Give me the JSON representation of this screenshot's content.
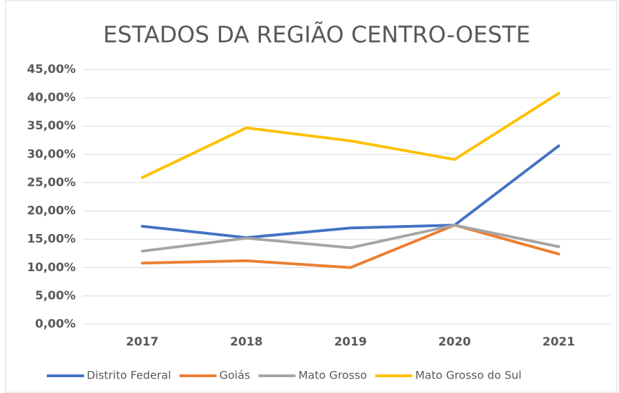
{
  "chart_data": {
    "type": "line",
    "title": "ESTADOS DA REGIÃO CENTRO-OESTE",
    "categories": [
      "2017",
      "2018",
      "2019",
      "2020",
      "2021"
    ],
    "series": [
      {
        "name": "Distrito Federal",
        "color": "#4472c4",
        "values": [
          17.3,
          15.3,
          17.0,
          17.5,
          31.5
        ]
      },
      {
        "name": "Goiás",
        "color": "#ed7d31",
        "values": [
          10.8,
          11.2,
          10.0,
          17.5,
          12.4
        ]
      },
      {
        "name": "Mato Grosso",
        "color": "#a5a5a5",
        "values": [
          12.9,
          15.2,
          13.5,
          17.5,
          13.7
        ]
      },
      {
        "name": "Mato Grosso do Sul",
        "color": "#ffc000",
        "values": [
          25.9,
          34.7,
          32.4,
          29.1,
          40.8
        ]
      }
    ],
    "ylim": [
      0,
      45
    ],
    "yticks": [
      {
        "value": 0,
        "label": "0,00%"
      },
      {
        "value": 5,
        "label": "5,00%"
      },
      {
        "value": 10,
        "label": "10,00%"
      },
      {
        "value": 15,
        "label": "15,00%"
      },
      {
        "value": 20,
        "label": "20,00%"
      },
      {
        "value": 25,
        "label": "25,00%"
      },
      {
        "value": 30,
        "label": "30,00%"
      },
      {
        "value": 35,
        "label": "35,00%"
      },
      {
        "value": 40,
        "label": "40,00%"
      },
      {
        "value": 45,
        "label": "45,00%"
      }
    ],
    "grid": true,
    "legend": "bottom"
  }
}
